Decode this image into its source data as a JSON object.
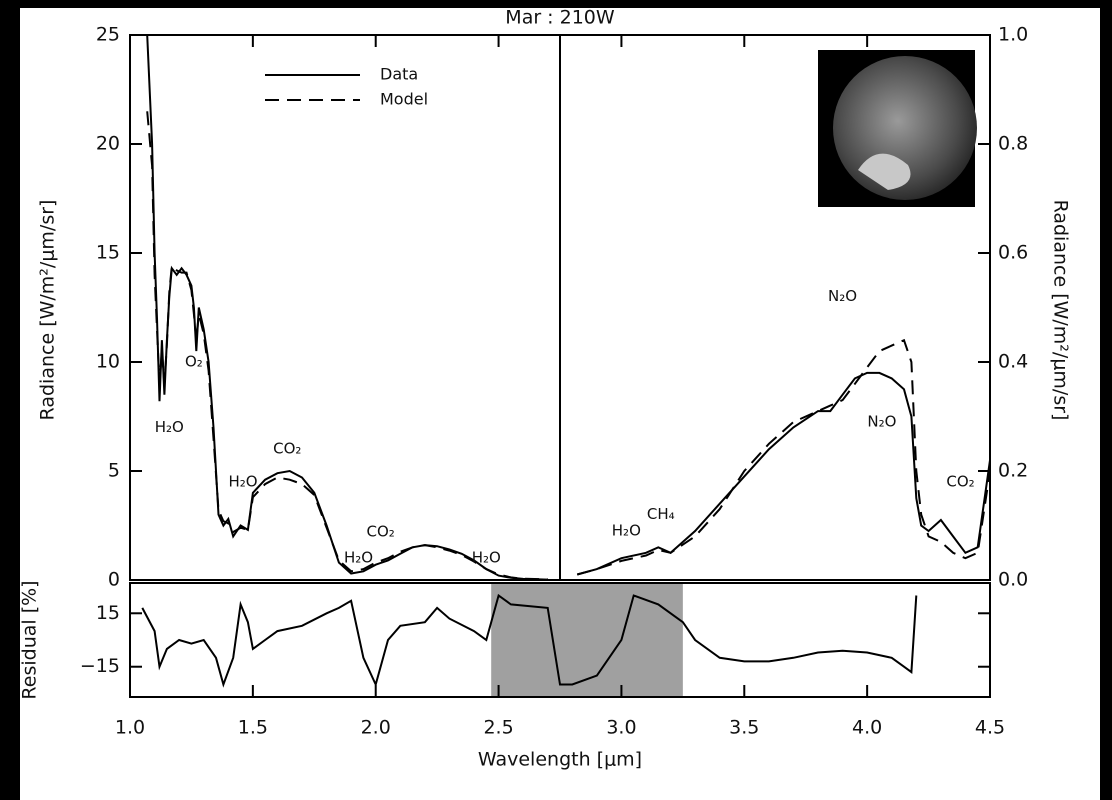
{
  "chart_data": [
    {
      "type": "line",
      "title": "Mar : 210W",
      "ylabel": "Radiance [W/m²/μm/sr]",
      "xlim": [
        1.0,
        2.75
      ],
      "ylim": [
        0,
        25
      ],
      "yticks": [
        0,
        5,
        10,
        15,
        20,
        25
      ],
      "x": [
        1.07,
        1.09,
        1.1,
        1.11,
        1.12,
        1.13,
        1.14,
        1.15,
        1.16,
        1.17,
        1.19,
        1.21,
        1.23,
        1.25,
        1.26,
        1.27,
        1.28,
        1.3,
        1.32,
        1.34,
        1.36,
        1.38,
        1.4,
        1.42,
        1.45,
        1.48,
        1.5,
        1.55,
        1.6,
        1.65,
        1.7,
        1.75,
        1.8,
        1.85,
        1.9,
        1.95,
        2.0,
        2.05,
        2.1,
        2.15,
        2.2,
        2.25,
        2.3,
        2.35,
        2.4,
        2.45,
        2.5,
        2.55,
        2.6,
        2.7
      ],
      "series": [
        {
          "name": "Data",
          "color": "#000000",
          "dash": false,
          "values": [
            25,
            20,
            15,
            12,
            8.2,
            11,
            8.5,
            11,
            13,
            14.3,
            14,
            14.3,
            14,
            13.5,
            12.5,
            10.5,
            12.5,
            11.5,
            10,
            7,
            3,
            2.5,
            2.8,
            2,
            2.5,
            2.3,
            4,
            4.6,
            4.9,
            5,
            4.7,
            4,
            2.5,
            0.8,
            0.3,
            0.4,
            0.7,
            0.9,
            1.2,
            1.5,
            1.6,
            1.55,
            1.4,
            1.2,
            0.9,
            0.5,
            0.2,
            0.1,
            0.05,
            0.02
          ]
        },
        {
          "name": "Model",
          "color": "#000000",
          "dash": true,
          "values": [
            21.5,
            19,
            14,
            11.5,
            9,
            10.5,
            9,
            10.8,
            13.2,
            14.4,
            14.2,
            14.1,
            14.1,
            13.3,
            12.2,
            11,
            12.2,
            11.3,
            9.6,
            6.5,
            3.2,
            2.7,
            2.6,
            2.2,
            2.4,
            2.3,
            3.8,
            4.4,
            4.7,
            4.6,
            4.4,
            3.9,
            2.4,
            0.9,
            0.4,
            0.5,
            0.8,
            1.0,
            1.3,
            1.5,
            1.6,
            1.5,
            1.35,
            1.15,
            0.85,
            0.5,
            0.25,
            0.12,
            0.06,
            0.03
          ]
        }
      ],
      "annotations": [
        {
          "text": "H₂O",
          "x": 1.16,
          "y": 7
        },
        {
          "text": "O₂",
          "x": 1.26,
          "y": 10
        },
        {
          "text": "H₂O",
          "x": 1.46,
          "y": 4.5
        },
        {
          "text": "CO₂",
          "x": 1.64,
          "y": 6
        },
        {
          "text": "H₂O",
          "x": 1.93,
          "y": 1
        },
        {
          "text": "CO₂",
          "x": 2.02,
          "y": 2.2
        },
        {
          "text": "H₂O",
          "x": 2.45,
          "y": 1
        }
      ]
    },
    {
      "type": "line",
      "y2label": "Radiance [W/m²/μm/sr]",
      "xlim": [
        2.75,
        4.5
      ],
      "y2lim": [
        0,
        1.0
      ],
      "y2ticks": [
        {
          "value": 0,
          "label": "0.0"
        },
        0.2,
        0.4,
        0.6,
        0.8,
        {
          "value": 1,
          "label": "1.0"
        }
      ],
      "x": [
        2.82,
        2.9,
        3.0,
        3.1,
        3.15,
        3.2,
        3.25,
        3.3,
        3.4,
        3.5,
        3.6,
        3.7,
        3.8,
        3.85,
        3.9,
        3.95,
        4.0,
        4.05,
        4.1,
        4.15,
        4.18,
        4.2,
        4.22,
        4.25,
        4.3,
        4.35,
        4.4,
        4.45,
        4.5
      ],
      "series": [
        {
          "color": "#000000",
          "dash": false,
          "axis": "y2",
          "values": [
            0.01,
            0.02,
            0.04,
            0.05,
            0.06,
            0.05,
            0.07,
            0.09,
            0.14,
            0.19,
            0.24,
            0.28,
            0.31,
            0.31,
            0.34,
            0.37,
            0.38,
            0.38,
            0.37,
            0.35,
            0.3,
            0.15,
            0.1,
            0.09,
            0.11,
            0.08,
            0.05,
            0.06,
            0.22
          ]
        },
        {
          "color": "#000000",
          "dash": true,
          "axis": "y2",
          "values": [
            0.01,
            0.02,
            0.035,
            0.045,
            0.055,
            0.05,
            0.065,
            0.08,
            0.13,
            0.2,
            0.25,
            0.29,
            0.31,
            0.32,
            0.33,
            0.36,
            0.39,
            0.42,
            0.43,
            0.44,
            0.4,
            0.2,
            0.12,
            0.08,
            0.07,
            0.05,
            0.04,
            0.05,
            0.2
          ]
        }
      ],
      "annotations": [
        {
          "text": "H₂O",
          "x": 3.02,
          "y": 0.09
        },
        {
          "text": "CH₄",
          "x": 3.16,
          "y": 0.12
        },
        {
          "text": "N₂O",
          "x": 3.9,
          "y": 0.52
        },
        {
          "text": "N₂O",
          "x": 4.06,
          "y": 0.29
        },
        {
          "text": "CO₂",
          "x": 4.38,
          "y": 0.18
        }
      ]
    },
    {
      "type": "line",
      "ylabel": "Residual [%]",
      "xlabel": "Wavelength [μm]",
      "xlim": [
        1.0,
        4.5
      ],
      "xticks": [
        {
          "value": 1,
          "label": "1.0"
        },
        1.5,
        {
          "value": 2,
          "label": "2.0"
        },
        2.5,
        {
          "value": 3,
          "label": "3.0"
        },
        3.5,
        {
          "value": 4,
          "label": "4.0"
        },
        4.5
      ],
      "ylim": [
        -32,
        32
      ],
      "yticks": [
        {
          "value": -15,
          "label": "−15"
        },
        15
      ],
      "shade": [
        2.47,
        3.25
      ],
      "shade_color": "#a0a0a0",
      "x": [
        1.05,
        1.1,
        1.12,
        1.15,
        1.2,
        1.25,
        1.3,
        1.35,
        1.38,
        1.42,
        1.45,
        1.48,
        1.5,
        1.55,
        1.6,
        1.7,
        1.8,
        1.85,
        1.9,
        1.95,
        2.0,
        2.05,
        2.1,
        2.2,
        2.25,
        2.3,
        2.4,
        2.45,
        2.5,
        2.55,
        2.7,
        2.75,
        2.8,
        2.9,
        3.0,
        3.05,
        3.15,
        3.25,
        3.3,
        3.4,
        3.5,
        3.6,
        3.7,
        3.8,
        3.9,
        4.0,
        4.1,
        4.15,
        4.18,
        4.2
      ],
      "series": [
        {
          "color": "#000000",
          "dash": false,
          "values": [
            18,
            5,
            -15,
            -5,
            0,
            -2,
            0,
            -10,
            -25,
            -10,
            20,
            10,
            -5,
            0,
            5,
            8,
            15,
            18,
            22,
            -10,
            -25,
            0,
            8,
            10,
            18,
            12,
            5,
            0,
            25,
            20,
            18,
            -25,
            -25,
            -20,
            0,
            25,
            20,
            10,
            0,
            -10,
            -12,
            -12,
            -10,
            -7,
            -6,
            -7,
            -10,
            -15,
            -18,
            25
          ]
        }
      ]
    }
  ]
}
